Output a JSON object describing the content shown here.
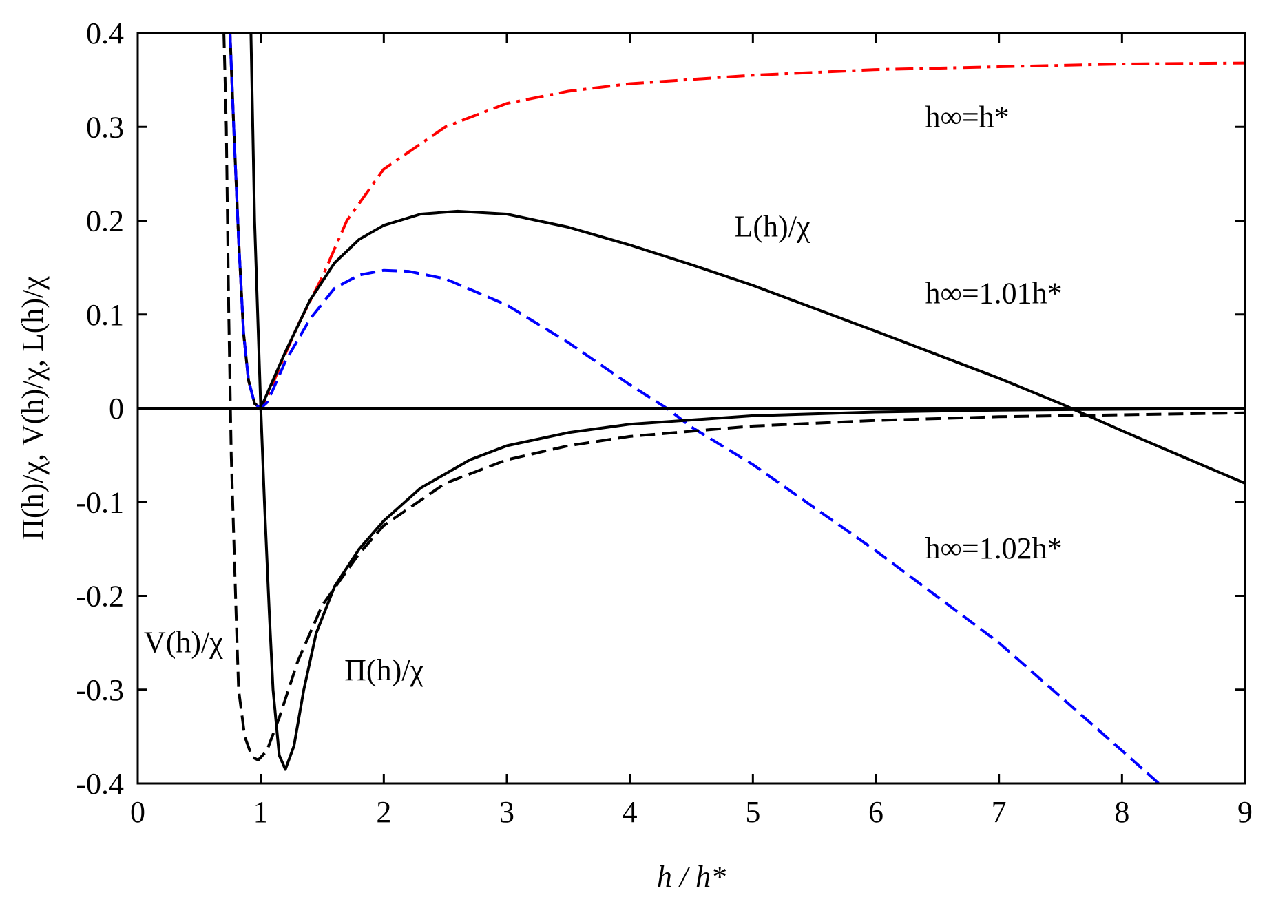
{
  "chart_data": {
    "type": "line",
    "xlabel": "h / h*",
    "ylabel": "Π(h)/χ, V(h)/χ, L(h)/χ",
    "xlim": [
      0,
      9
    ],
    "ylim": [
      -0.4,
      0.4
    ],
    "xticks": [
      0,
      1,
      2,
      3,
      4,
      5,
      6,
      7,
      8,
      9
    ],
    "xtick_labels": [
      "0",
      "1",
      "2",
      "3",
      "4",
      "5",
      "6",
      "7",
      "8",
      "9"
    ],
    "yticks": [
      -0.4,
      -0.3,
      -0.2,
      -0.1,
      0,
      0.1,
      0.2,
      0.3,
      0.4
    ],
    "ytick_labels": [
      "-0.4",
      "-0.3",
      "-0.2",
      "-0.1",
      "0",
      "0.1",
      "0.2",
      "0.3",
      "0.4"
    ],
    "grid": false,
    "legend": "none",
    "annotations": [
      {
        "text": "h∞=h*",
        "x": 6.4,
        "y": 0.3
      },
      {
        "text": "L(h)/χ",
        "x": 4.85,
        "y": 0.183
      },
      {
        "text": "h∞=1.01h*",
        "x": 6.4,
        "y": 0.112
      },
      {
        "text": "h∞=1.02h*",
        "x": 6.4,
        "y": -0.16
      },
      {
        "text": "V(h)/χ",
        "x": 0.05,
        "y": -0.26
      },
      {
        "text": "Π(h)/χ",
        "x": 1.68,
        "y": -0.29
      }
    ],
    "series": [
      {
        "style": "dashdot",
        "color": "#ff0000",
        "points": [
          [
            0.75,
            0.4
          ],
          [
            0.78,
            0.3
          ],
          [
            0.82,
            0.18
          ],
          [
            0.86,
            0.08
          ],
          [
            0.9,
            0.03
          ],
          [
            0.95,
            0.005
          ],
          [
            1.0,
            0
          ],
          [
            1.05,
            0.01
          ],
          [
            1.1,
            0.027
          ],
          [
            1.2,
            0.058
          ],
          [
            1.3,
            0.088
          ],
          [
            1.5,
            0.14
          ],
          [
            1.7,
            0.2
          ],
          [
            2.0,
            0.255
          ],
          [
            2.5,
            0.3
          ],
          [
            3.0,
            0.325
          ],
          [
            3.5,
            0.338
          ],
          [
            4.0,
            0.346
          ],
          [
            5.0,
            0.355
          ],
          [
            6.0,
            0.361
          ],
          [
            7.0,
            0.364
          ],
          [
            8.0,
            0.367
          ],
          [
            9.0,
            0.368
          ]
        ]
      },
      {
        "style": "solid",
        "color": "#000000",
        "points": [
          [
            0.75,
            0.4
          ],
          [
            0.78,
            0.3
          ],
          [
            0.82,
            0.18
          ],
          [
            0.86,
            0.08
          ],
          [
            0.9,
            0.03
          ],
          [
            0.95,
            0.005
          ],
          [
            1.0,
            0
          ],
          [
            1.05,
            0.015
          ],
          [
            1.1,
            0.03
          ],
          [
            1.2,
            0.06
          ],
          [
            1.4,
            0.115
          ],
          [
            1.6,
            0.155
          ],
          [
            1.8,
            0.18
          ],
          [
            2.0,
            0.195
          ],
          [
            2.3,
            0.207
          ],
          [
            2.6,
            0.21
          ],
          [
            3.0,
            0.207
          ],
          [
            3.5,
            0.193
          ],
          [
            4.0,
            0.174
          ],
          [
            4.5,
            0.153
          ],
          [
            5.0,
            0.131
          ],
          [
            6.0,
            0.082
          ],
          [
            7.0,
            0.032
          ],
          [
            7.5,
            0.005
          ],
          [
            8.0,
            -0.024
          ],
          [
            8.5,
            -0.052
          ],
          [
            9.0,
            -0.08
          ]
        ]
      },
      {
        "style": "dashed",
        "color": "#0000ff",
        "points": [
          [
            0.75,
            0.4
          ],
          [
            0.78,
            0.3
          ],
          [
            0.82,
            0.18
          ],
          [
            0.86,
            0.08
          ],
          [
            0.9,
            0.03
          ],
          [
            0.95,
            0.005
          ],
          [
            1.0,
            0
          ],
          [
            1.05,
            0.006
          ],
          [
            1.1,
            0.02
          ],
          [
            1.2,
            0.05
          ],
          [
            1.4,
            0.095
          ],
          [
            1.6,
            0.128
          ],
          [
            1.8,
            0.142
          ],
          [
            2.0,
            0.147
          ],
          [
            2.2,
            0.146
          ],
          [
            2.5,
            0.138
          ],
          [
            3.0,
            0.11
          ],
          [
            3.5,
            0.07
          ],
          [
            4.0,
            0.025
          ],
          [
            4.3,
            0
          ],
          [
            4.5,
            -0.02
          ],
          [
            5.0,
            -0.06
          ],
          [
            6.0,
            -0.152
          ],
          [
            7.0,
            -0.25
          ],
          [
            8.0,
            -0.365
          ],
          [
            8.3,
            -0.4
          ]
        ]
      },
      {
        "style": "solid",
        "color": "#000000",
        "points": [
          [
            0.92,
            0.4
          ],
          [
            0.95,
            0.2
          ],
          [
            1.0,
            0
          ],
          [
            1.03,
            -0.1
          ],
          [
            1.07,
            -0.22
          ],
          [
            1.1,
            -0.3
          ],
          [
            1.15,
            -0.37
          ],
          [
            1.2,
            -0.385
          ],
          [
            1.27,
            -0.36
          ],
          [
            1.35,
            -0.3
          ],
          [
            1.45,
            -0.24
          ],
          [
            1.6,
            -0.19
          ],
          [
            1.8,
            -0.15
          ],
          [
            2.0,
            -0.12
          ],
          [
            2.3,
            -0.085
          ],
          [
            2.7,
            -0.055
          ],
          [
            3.0,
            -0.04
          ],
          [
            3.5,
            -0.026
          ],
          [
            4.0,
            -0.017
          ],
          [
            5.0,
            -0.008
          ],
          [
            6.0,
            -0.004
          ],
          [
            7.0,
            -0.002
          ],
          [
            8.0,
            -0.001
          ],
          [
            9.0,
            0
          ]
        ]
      },
      {
        "style": "dashed",
        "color": "#000000",
        "points": [
          [
            0.7,
            0.4
          ],
          [
            0.72,
            0.3
          ],
          [
            0.74,
            0.1
          ],
          [
            0.76,
            -0.05
          ],
          [
            0.8,
            -0.22
          ],
          [
            0.82,
            -0.3
          ],
          [
            0.87,
            -0.35
          ],
          [
            0.93,
            -0.372
          ],
          [
            0.98,
            -0.375
          ],
          [
            1.05,
            -0.365
          ],
          [
            1.15,
            -0.33
          ],
          [
            1.3,
            -0.27
          ],
          [
            1.5,
            -0.21
          ],
          [
            1.8,
            -0.155
          ],
          [
            2.0,
            -0.125
          ],
          [
            2.5,
            -0.08
          ],
          [
            3.0,
            -0.055
          ],
          [
            3.5,
            -0.04
          ],
          [
            4.0,
            -0.03
          ],
          [
            5.0,
            -0.019
          ],
          [
            6.0,
            -0.013
          ],
          [
            7.0,
            -0.009
          ],
          [
            8.0,
            -0.007
          ],
          [
            9.0,
            -0.005
          ]
        ]
      }
    ]
  }
}
